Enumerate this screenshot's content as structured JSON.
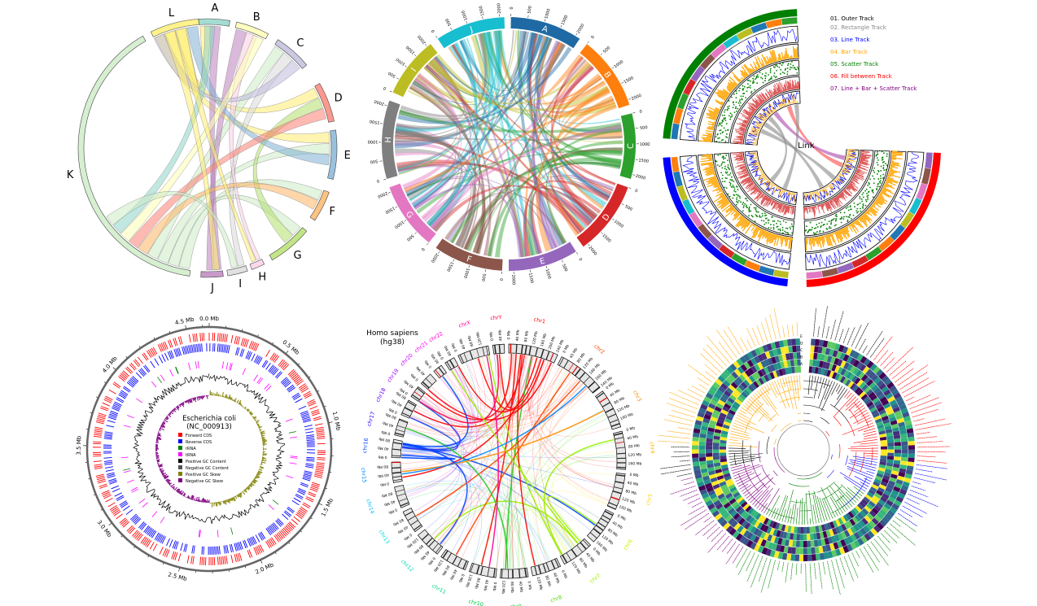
{
  "panels": {
    "chord_letters": {
      "sectors": [
        "A",
        "B",
        "C",
        "D",
        "E",
        "F",
        "G",
        "H",
        "I",
        "J",
        "K",
        "L"
      ],
      "colors": [
        "#8dd3c7",
        "#ffffb3",
        "#bebada",
        "#fb8072",
        "#80b1d3",
        "#fdb462",
        "#b3de69",
        "#fccde5",
        "#d9d9d9",
        "#bc80bd",
        "#ccebc5",
        "#ffed6f"
      ]
    },
    "chord_matrix": {
      "sectors": [
        "A",
        "B",
        "C",
        "D",
        "E",
        "F",
        "G",
        "H",
        "I",
        "J"
      ],
      "colors": [
        "#1f6aa5",
        "#ff7f0e",
        "#2ca02c",
        "#d62728",
        "#9467bd",
        "#8c564b",
        "#e377c2",
        "#7f7f7f",
        "#bcbd22",
        "#17becf"
      ],
      "ticks": [
        "0",
        "500",
        "1000",
        "1500",
        "2000"
      ]
    },
    "tracks": {
      "legend": [
        {
          "label": "01. Outer Track",
          "color": "#000000"
        },
        {
          "label": "02. Rectangle Track",
          "color": "#888888"
        },
        {
          "label": "03. Line Track",
          "color": "#0000ff"
        },
        {
          "label": "04. Bar Track",
          "color": "#ffa500"
        },
        {
          "label": "05. Scatter Track",
          "color": "#008000"
        },
        {
          "label": "06. Fill between Track",
          "color": "#ff0000"
        },
        {
          "label": "07. Line + Bar + Scatter Track",
          "color": "#800080"
        }
      ],
      "link_label": "Link",
      "sector_colors": [
        "#008000",
        "#ff0000",
        "#0000ff"
      ]
    },
    "ecoli": {
      "title": "Escherichia coli",
      "subtitle": "(NC_000913)",
      "ticks": [
        "0.0 Mb",
        "0.5 Mb",
        "1.0 Mb",
        "1.5 Mb",
        "2.0 Mb",
        "2.5 Mb",
        "3.0 Mb",
        "3.5 Mb",
        "4.0 Mb",
        "4.5 Mb"
      ],
      "legend": [
        {
          "label": "Forward CDS",
          "color": "#ff0000"
        },
        {
          "label": "Reverse CDS",
          "color": "#0000ff"
        },
        {
          "label": "rRNA",
          "color": "#008000"
        },
        {
          "label": "tRNA",
          "color": "#ff00ff"
        },
        {
          "label": "Positive GC Content",
          "color": "#000000"
        },
        {
          "label": "Negative GC Content",
          "color": "#555555"
        },
        {
          "label": "Positive GC Skew",
          "color": "#808000"
        },
        {
          "label": "Negative GC Skew",
          "color": "#800080"
        }
      ]
    },
    "human": {
      "title": "Homo sapiens",
      "subtitle": "(hg38)",
      "chromosomes": [
        {
          "name": "chr1",
          "color": "#ff0000",
          "ticks": [
            "0 Mb",
            "40 Mb",
            "80 Mb",
            "120 Mb",
            "160 Mb",
            "200 Mb",
            "240 Mb"
          ]
        },
        {
          "name": "chr2",
          "color": "#ff4500",
          "ticks": [
            "0 Mb",
            "40 Mb",
            "80 Mb",
            "120 Mb",
            "160 Mb",
            "200 Mb",
            "240 Mb"
          ]
        },
        {
          "name": "chr3",
          "color": "#ff8c00",
          "ticks": [
            "0 Mb",
            "40 Mb",
            "80 Mb",
            "120 Mb",
            "160 Mb"
          ]
        },
        {
          "name": "chr4",
          "color": "#ffb000",
          "ticks": [
            "0 Mb",
            "40 Mb",
            "80 Mb",
            "120 Mb",
            "160 Mb"
          ]
        },
        {
          "name": "chr5",
          "color": "#ffd700",
          "ticks": [
            "0 Mb",
            "40 Mb",
            "80 Mb",
            "120 Mb",
            "160 Mb"
          ]
        },
        {
          "name": "chr6",
          "color": "#ccee00",
          "ticks": [
            "0 Mb",
            "40 Mb",
            "80 Mb",
            "120 Mb",
            "160 Mb"
          ]
        },
        {
          "name": "chr7",
          "color": "#99ee00",
          "ticks": [
            "0 Mb",
            "40 Mb",
            "80 Mb",
            "120 Mb"
          ]
        },
        {
          "name": "chr8",
          "color": "#55dd00",
          "ticks": [
            "0 Mb",
            "40 Mb",
            "80 Mb",
            "120 Mb"
          ]
        },
        {
          "name": "chr9",
          "color": "#22cc22",
          "ticks": [
            "0 Mb",
            "40 Mb",
            "80 Mb",
            "120 Mb"
          ]
        },
        {
          "name": "chr10",
          "color": "#00cc44",
          "ticks": [
            "0 Mb",
            "40 Mb",
            "80 Mb",
            "120 Mb"
          ]
        },
        {
          "name": "chr11",
          "color": "#00dd88",
          "ticks": [
            "0 Mb",
            "40 Mb",
            "80 Mb",
            "120 Mb"
          ]
        },
        {
          "name": "chr12",
          "color": "#00ddbb",
          "ticks": [
            "0 Mb",
            "40 Mb",
            "80 Mb",
            "120 Mb"
          ]
        },
        {
          "name": "chr13",
          "color": "#00dddd",
          "ticks": [
            "0 Mb",
            "40 Mb",
            "80 Mb"
          ]
        },
        {
          "name": "chr14",
          "color": "#00bbff",
          "ticks": [
            "0 Mb",
            "40 Mb",
            "80 Mb"
          ]
        },
        {
          "name": "chr15",
          "color": "#0088ff",
          "ticks": [
            "0 Mb",
            "40 Mb",
            "80 Mb"
          ]
        },
        {
          "name": "chr16",
          "color": "#0044ff",
          "ticks": [
            "0 Mb",
            "40 Mb",
            "80 Mb"
          ]
        },
        {
          "name": "chr17",
          "color": "#2200ff",
          "ticks": [
            "0 Mb",
            "40 Mb",
            "80 Mb"
          ]
        },
        {
          "name": "chr18",
          "color": "#6600ff",
          "ticks": [
            "0 Mb",
            "40 Mb",
            "80 Mb"
          ]
        },
        {
          "name": "chr19",
          "color": "#9900ff",
          "ticks": [
            "0 Mb",
            "40 Mb"
          ]
        },
        {
          "name": "chr20",
          "color": "#cc00ff",
          "ticks": [
            "0 Mb",
            "40 Mb"
          ]
        },
        {
          "name": "chr21",
          "color": "#ff00ff",
          "ticks": [
            "0 Mb",
            "40 Mb"
          ]
        },
        {
          "name": "chr22",
          "color": "#ff00cc",
          "ticks": [
            "0 Mb",
            "40 Mb"
          ]
        },
        {
          "name": "chrX",
          "color": "#ff0088",
          "ticks": [
            "0 Mb",
            "40 Mb",
            "80 Mb",
            "120 Mb"
          ]
        },
        {
          "name": "chrY",
          "color": "#ff0044",
          "ticks": [
            "0 Mb",
            "40 Mb"
          ]
        }
      ]
    },
    "phylo": {
      "heatmap_rows": [
        "E",
        "D",
        "C",
        "B",
        "A"
      ],
      "clade_colors": [
        "#ffa500",
        "#000000",
        "#ff0000",
        "#0000ff",
        "#008000",
        "#800080"
      ]
    }
  }
}
